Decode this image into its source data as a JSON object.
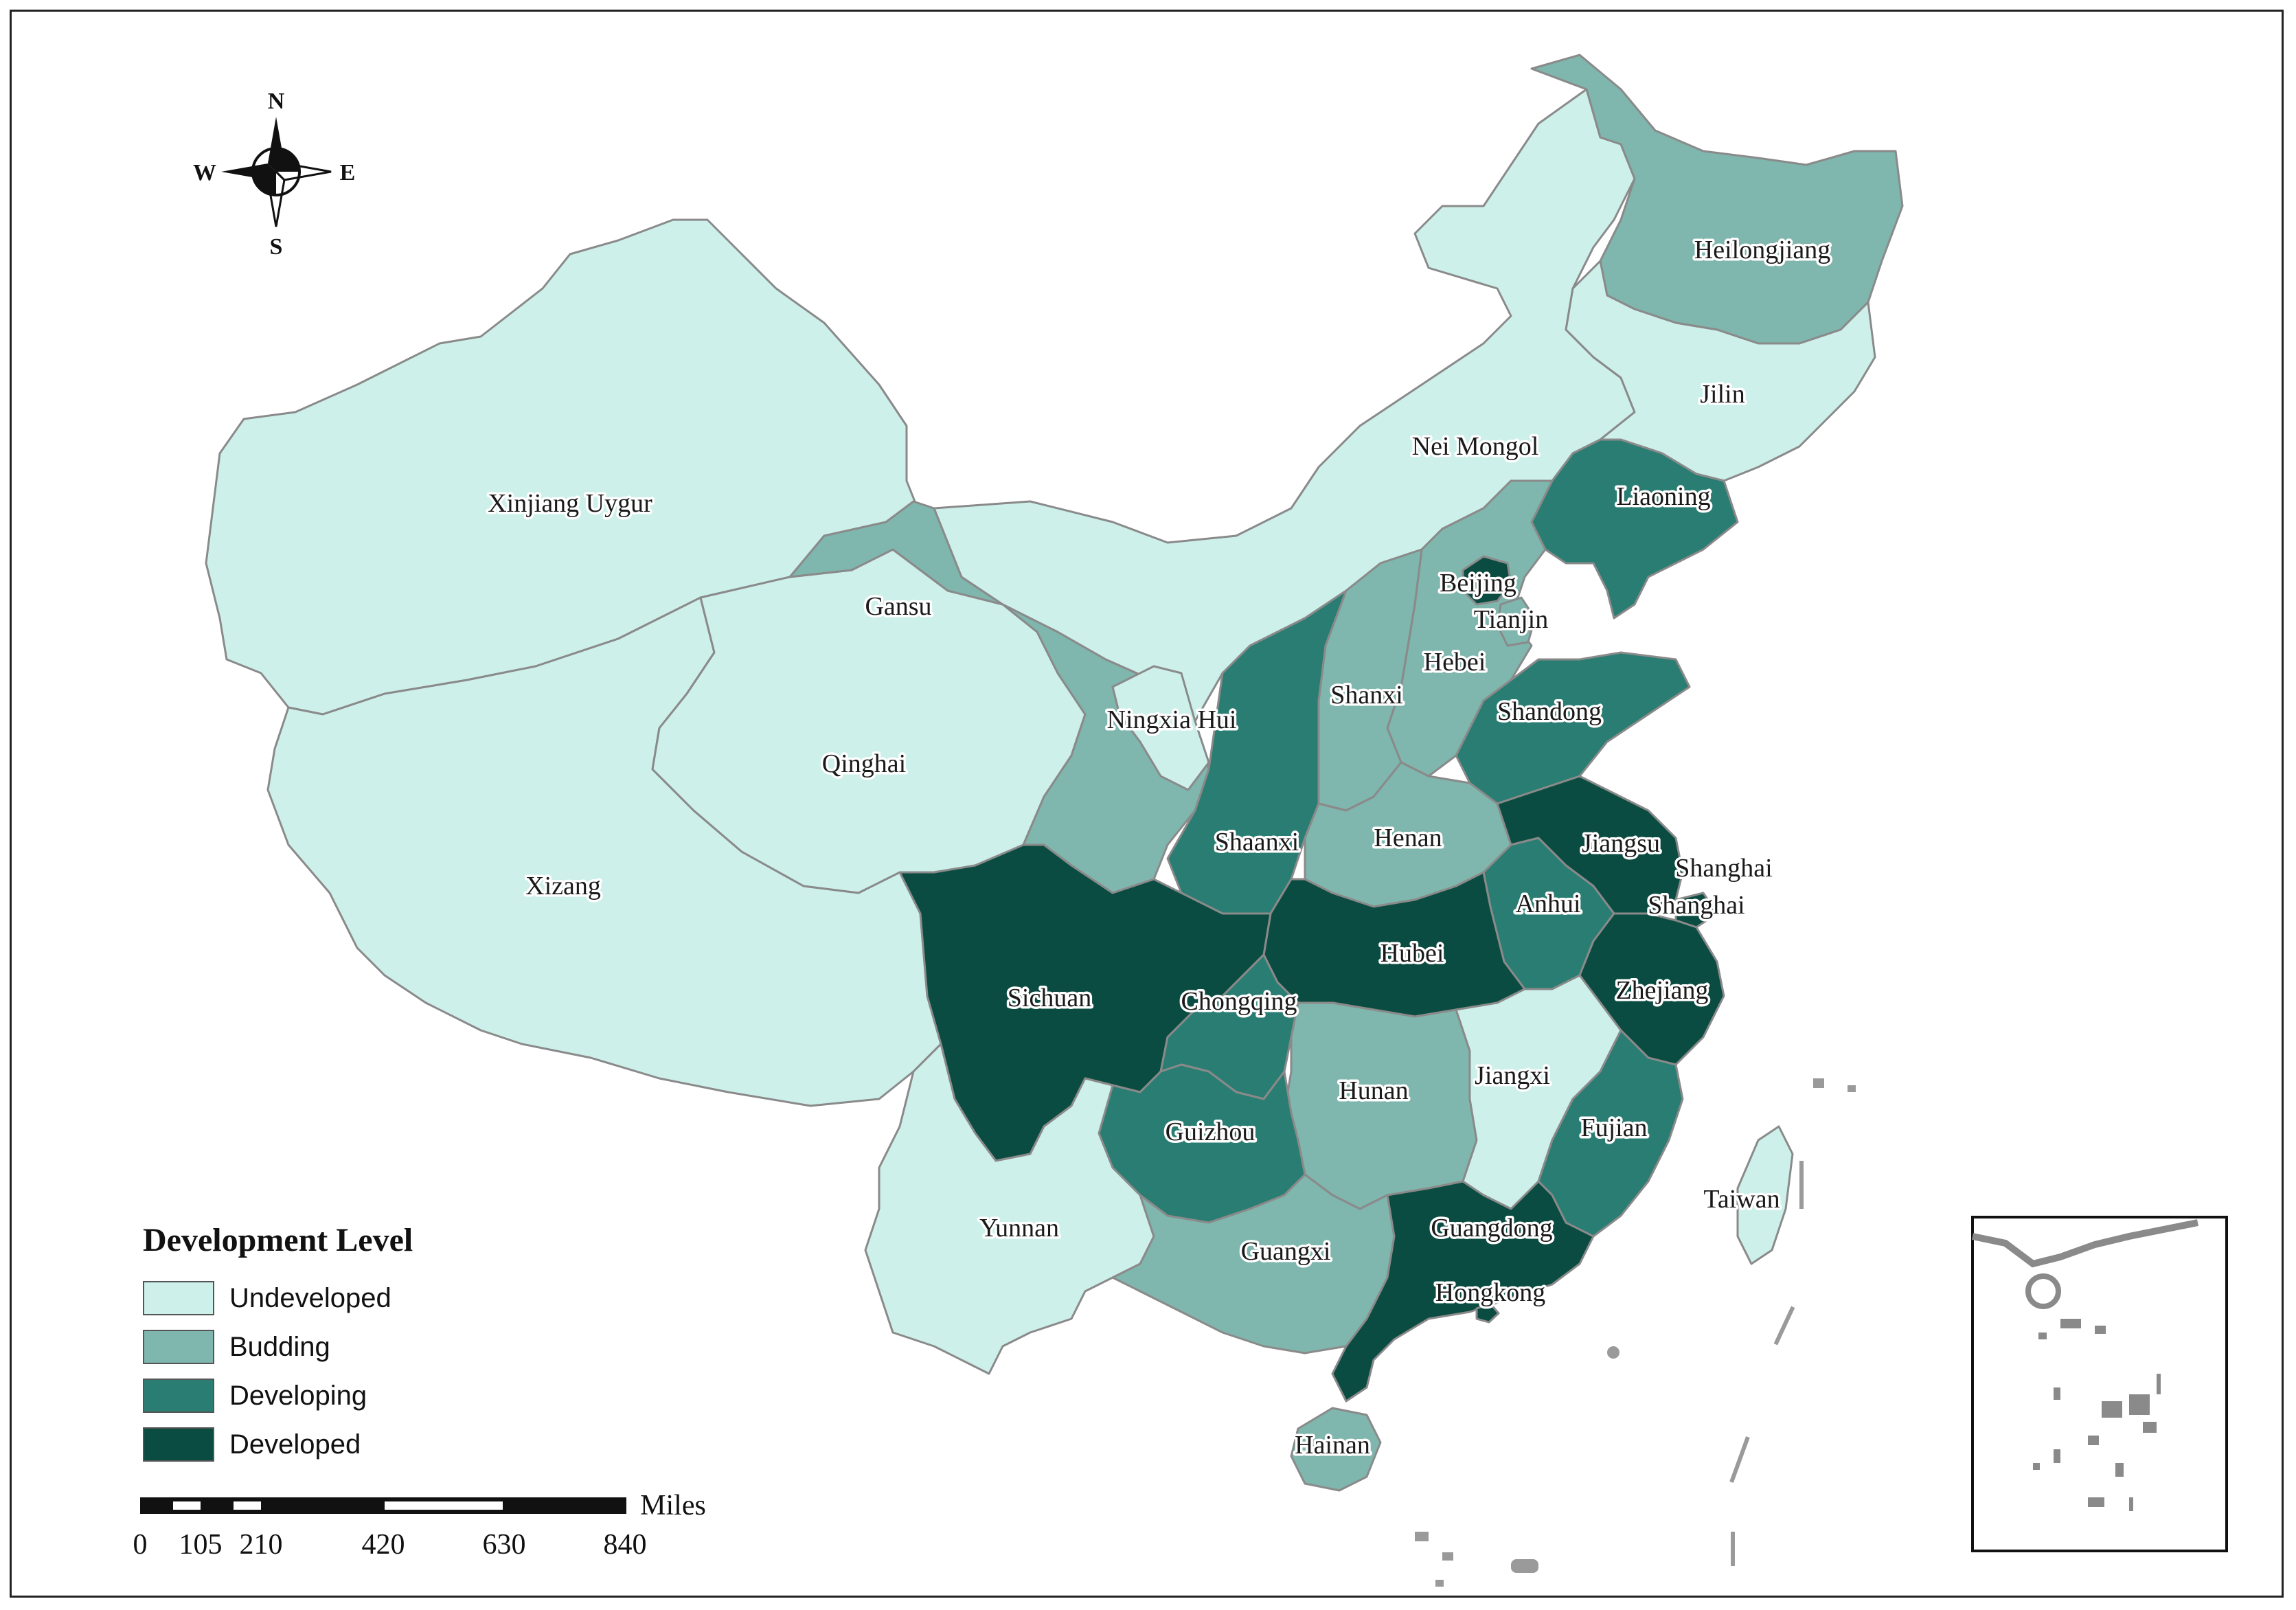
{
  "legend": {
    "title": "Development Level",
    "items": [
      {
        "label": "Undeveloped",
        "color": "#cdf0eb"
      },
      {
        "label": "Budding",
        "color": "#7fb6ad"
      },
      {
        "label": "Developing",
        "color": "#2a7d72"
      },
      {
        "label": "Developed",
        "color": "#0b4c42"
      }
    ]
  },
  "compass": {
    "n": "N",
    "s": "S",
    "e": "E",
    "w": "W"
  },
  "scale_bar": {
    "unit": "Miles",
    "ticks": [
      "0",
      "105",
      "210",
      "420",
      "630",
      "840"
    ]
  },
  "provinces": [
    {
      "id": "xinjiang",
      "name": "Xinjiang Uygur",
      "level": "Undeveloped"
    },
    {
      "id": "xizang",
      "name": "Xizang",
      "level": "Undeveloped"
    },
    {
      "id": "qinghai",
      "name": "Qinghai",
      "level": "Undeveloped"
    },
    {
      "id": "gansu",
      "name": "Gansu",
      "level": "Budding"
    },
    {
      "id": "neimongol",
      "name": "Nei Mongol",
      "level": "Undeveloped"
    },
    {
      "id": "heilongjiang",
      "name": "Heilongjiang",
      "level": "Budding"
    },
    {
      "id": "jilin",
      "name": "Jilin",
      "level": "Undeveloped"
    },
    {
      "id": "liaoning",
      "name": "Liaoning",
      "level": "Developing"
    },
    {
      "id": "beijing",
      "name": "Beijing",
      "level": "Developed"
    },
    {
      "id": "tianjin",
      "name": "Tianjin",
      "level": "Budding"
    },
    {
      "id": "hebei",
      "name": "Hebei",
      "level": "Budding"
    },
    {
      "id": "shanxi",
      "name": "Shanxi",
      "level": "Budding"
    },
    {
      "id": "ningxia",
      "name": "Ningxia Hui",
      "level": "Undeveloped"
    },
    {
      "id": "shaanxi",
      "name": "Shaanxi",
      "level": "Developing"
    },
    {
      "id": "henan",
      "name": "Henan",
      "level": "Budding"
    },
    {
      "id": "shandong",
      "name": "Shandong",
      "level": "Developing"
    },
    {
      "id": "jiangsu",
      "name": "Jiangsu",
      "level": "Developed"
    },
    {
      "id": "shanghai",
      "name": "Shanghai",
      "level": "Developed"
    },
    {
      "id": "shanghai2",
      "name": "Shanghai",
      "level": "Developed"
    },
    {
      "id": "anhui",
      "name": "Anhui",
      "level": "Developing"
    },
    {
      "id": "hubei",
      "name": "Hubei",
      "level": "Developed"
    },
    {
      "id": "sichuan",
      "name": "Sichuan",
      "level": "Developed"
    },
    {
      "id": "chongqing",
      "name": "Chongqing",
      "level": "Developing"
    },
    {
      "id": "zhejiang",
      "name": "Zhejiang",
      "level": "Developed"
    },
    {
      "id": "hunan",
      "name": "Hunan",
      "level": "Budding"
    },
    {
      "id": "jiangxi",
      "name": "Jiangxi",
      "level": "Undeveloped"
    },
    {
      "id": "guizhou",
      "name": "Guizhou",
      "level": "Developing"
    },
    {
      "id": "fujian",
      "name": "Fujian",
      "level": "Developing"
    },
    {
      "id": "yunnan",
      "name": "Yunnan",
      "level": "Undeveloped"
    },
    {
      "id": "guangxi",
      "name": "Guangxi",
      "level": "Budding"
    },
    {
      "id": "guangdong",
      "name": "Guangdong",
      "level": "Developed"
    },
    {
      "id": "hongkong",
      "name": "Hongkong",
      "level": "Developed"
    },
    {
      "id": "taiwan",
      "name": "Taiwan",
      "level": "Undeveloped"
    },
    {
      "id": "hainan",
      "name": "Hainan",
      "level": "Budding"
    }
  ]
}
